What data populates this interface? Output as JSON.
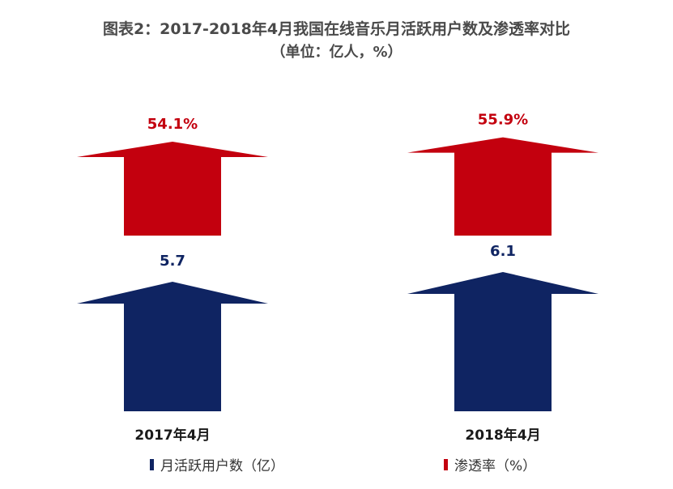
{
  "title": "图表2：2017-2018年4月我国在线音乐月活跃用户数及渗透率对比",
  "subtitle": "（单位：亿人，%）",
  "colors": {
    "mau": "#0f2462",
    "penetration": "#c3000e"
  },
  "chart_data": {
    "type": "bar",
    "categories": [
      "2017年4月",
      "2018年4月"
    ],
    "series": [
      {
        "name": "月活跃用户数（亿）",
        "values": [
          5.7,
          6.1
        ],
        "labels": [
          "5.7",
          "6.1"
        ]
      },
      {
        "name": "渗透率（%）",
        "values": [
          54.1,
          55.9
        ],
        "labels": [
          "54.1%",
          "55.9%"
        ]
      }
    ],
    "legend": [
      "月活跃用户数（亿）",
      "渗透率（%）"
    ],
    "legend_position": "bottom"
  }
}
